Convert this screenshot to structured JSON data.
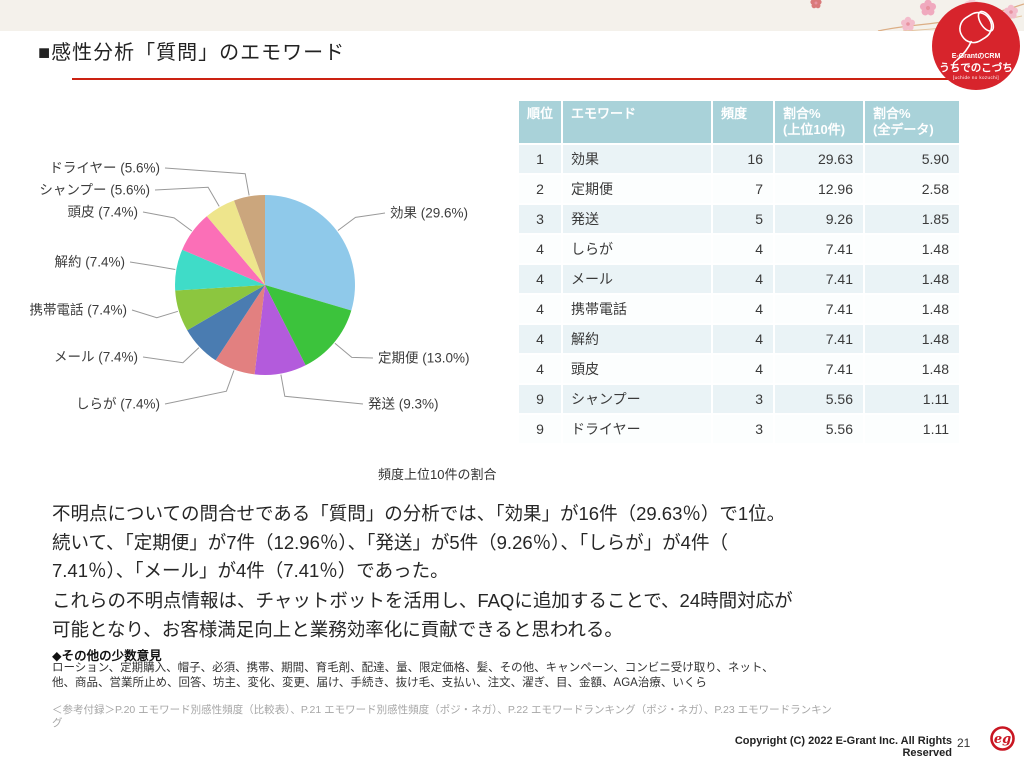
{
  "header": {
    "title": "■感性分析「質問」のエモワード",
    "accent_red": "#CB2212",
    "logo": {
      "brand": "E-GrantのCRM",
      "product": "うちでのこづち",
      "romaji": "[uchide no kozuchi]",
      "circle_red": "#D7242C"
    }
  },
  "chart_data": {
    "type": "pie",
    "title": "頻度上位10件の割合",
    "unit": "%",
    "legend_position": "callout-labels",
    "labels": [
      "効果",
      "定期便",
      "発送",
      "しらが",
      "メール",
      "携帯電話",
      "解約",
      "頭皮",
      "シャンプー",
      "ドライヤー"
    ],
    "values": [
      29.6,
      13.0,
      9.3,
      7.4,
      7.4,
      7.4,
      7.4,
      7.4,
      5.6,
      5.6
    ],
    "colors": [
      "#8FC9EA",
      "#3CC33C",
      "#B35BDC",
      "#E28080",
      "#4A7CB1",
      "#8CC63F",
      "#3FDCC8",
      "#FB6FB7",
      "#EEE58C",
      "#CBA67D"
    ]
  },
  "table": {
    "headers": [
      "順位",
      "エモワード",
      "頻度",
      "割合%\n(上位10件)",
      "割合%\n(全データ)"
    ],
    "header_bg": "#A9D2D9",
    "row_alt_bg": "#EAF3F6",
    "rows": [
      [
        "1",
        "効果",
        "16",
        "29.63",
        "5.90"
      ],
      [
        "2",
        "定期便",
        "7",
        "12.96",
        "2.58"
      ],
      [
        "3",
        "発送",
        "5",
        "9.26",
        "1.85"
      ],
      [
        "4",
        "しらが",
        "4",
        "7.41",
        "1.48"
      ],
      [
        "4",
        "メール",
        "4",
        "7.41",
        "1.48"
      ],
      [
        "4",
        "携帯電話",
        "4",
        "7.41",
        "1.48"
      ],
      [
        "4",
        "解約",
        "4",
        "7.41",
        "1.48"
      ],
      [
        "4",
        "頭皮",
        "4",
        "7.41",
        "1.48"
      ],
      [
        "9",
        "シャンプー",
        "3",
        "5.56",
        "1.11"
      ],
      [
        "9",
        "ドライヤー",
        "3",
        "5.56",
        "1.11"
      ]
    ]
  },
  "body": {
    "paragraph1": "不明点についての問合せである「質問」の分析では、「効果」が16件（29.63％）で1位。\n続いて、「定期便」が7件（12.96％）、「発送」が5件（9.26％）、「しらが」が4件（\n7.41％）、「メール」が4件（7.41％）であった。",
    "paragraph2": "これらの不明点情報は、チャットボットを活用し、FAQに追加することで、24時間対応が\n可能となり、お客様満足向上と業務効率化に貢献できると思われる。",
    "minor_heading": "◆その他の少数意見",
    "minor_list": "ローション、定期購入、帽子、必須、携帯、期間、育毛剤、配達、量、限定価格、髪、その他、キャンペーン、コンビニ受け取り、ネット、\n他、商品、営業所止め、回答、坊主、変化、変更、届け、手続き、抜け毛、支払い、注文、濯ぎ、目、金額、AGA治療、いくら",
    "reference": "＜参考付録＞P.20 エモワード別感性頻度（比較表）、P.21 エモワード別感性頻度（ポジ・ネガ）、P.22 エモワードランキング（ポジ・ネガ）、P.23 エモワードランキン\nグ"
  },
  "footer": {
    "copyright": "Copyright (C) 2022 E-Grant Inc. All Rights Reserved",
    "page_number": "21",
    "logo_monogram": "eg",
    "logo_red": "#C91622"
  }
}
